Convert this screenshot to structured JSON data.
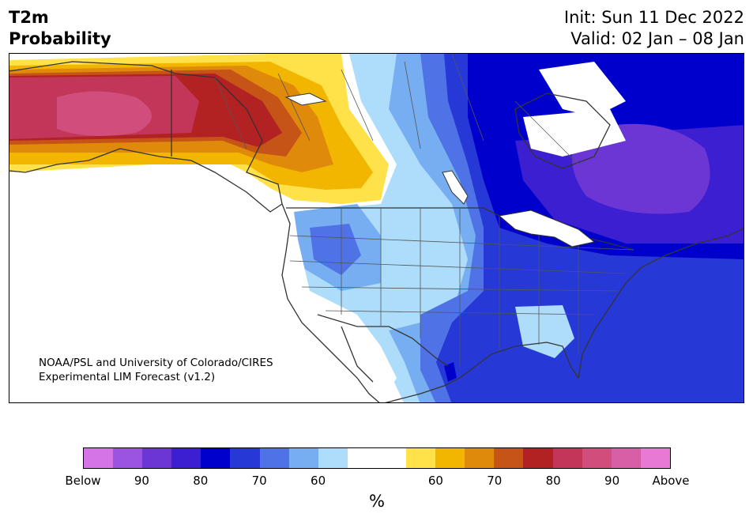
{
  "header": {
    "variable": "T2m",
    "product": "Probability",
    "init": "Init: Sun 11 Dec 2022",
    "valid": "Valid: 02 Jan – 08 Jan"
  },
  "credit": {
    "line1": "NOAA/PSL and University of Colorado/CIRES",
    "line2": "Experimental LIM Forecast (v1.2)"
  },
  "legend": {
    "unit": "%",
    "colors": [
      "#d474e6",
      "#9a54df",
      "#6c36d4",
      "#3b1fd0",
      "#0000cd",
      "#2639d6",
      "#4f73e6",
      "#76aef1",
      "#aedcfb",
      "#ffffff",
      "#ffffff",
      "#ffe14a",
      "#f3b600",
      "#e08a0c",
      "#c65417",
      "#b22222",
      "#c23659",
      "#d14e7c",
      "#d85ea6",
      "#e87ad6"
    ],
    "ticks": [
      "Below",
      "90",
      "80",
      "70",
      "60",
      "60",
      "70",
      "80",
      "90",
      "Above"
    ]
  }
}
